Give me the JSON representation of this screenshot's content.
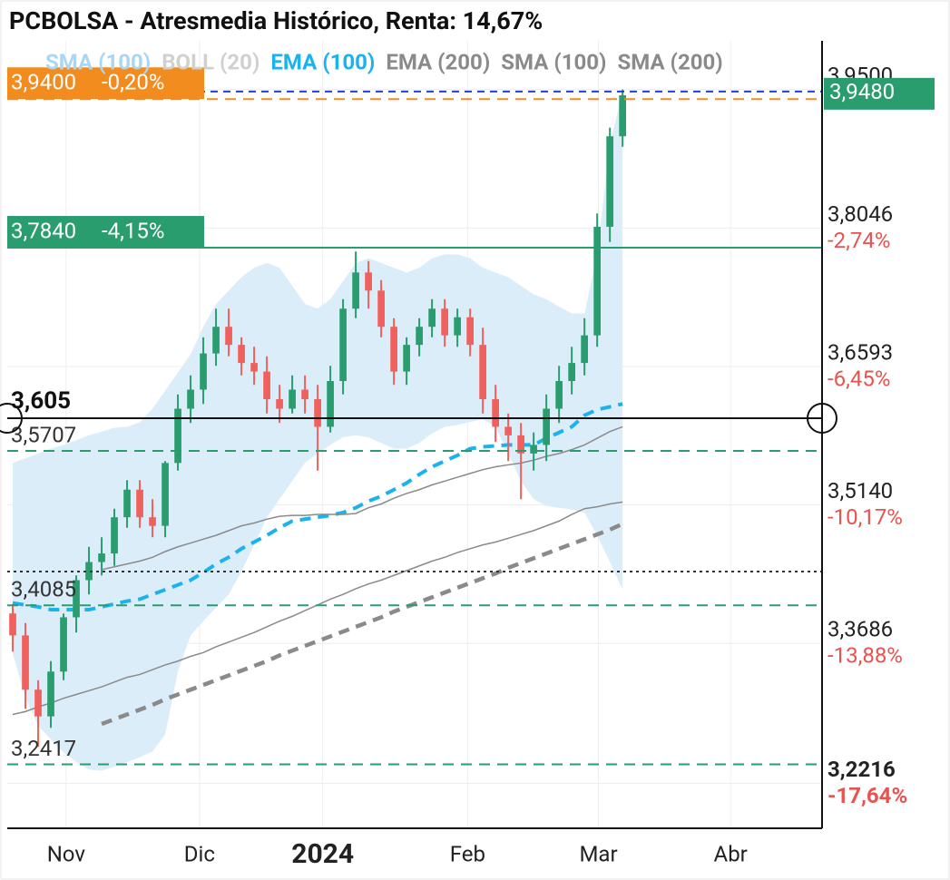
{
  "chart_data": {
    "type": "candlestick",
    "title": "PCBOLSA - Atresmedia Histórico, Renta: 14,67%",
    "legend": [
      {
        "name": "SMA (100)",
        "color": "#a9d6f2"
      },
      {
        "name": "BOLL (20)",
        "color": "#d0d0d0"
      },
      {
        "name": "EMA (100)",
        "color": "#1ab3ee"
      },
      {
        "name": "EMA (200)",
        "color": "#8a8a8a"
      },
      {
        "name": "SMA (100)",
        "color": "#8a8a8a"
      },
      {
        "name": "SMA (200)",
        "color": "#8a8a8a"
      }
    ],
    "categories": [
      null,
      null,
      null,
      null,
      null,
      null,
      null,
      null,
      null,
      null,
      null,
      null,
      null,
      null,
      null,
      null,
      null,
      null,
      null,
      null,
      null,
      null,
      null,
      null,
      null,
      null,
      null,
      null,
      null,
      null,
      null,
      null,
      null,
      null,
      null,
      null,
      null,
      null,
      null,
      null,
      null,
      null,
      null,
      null,
      null,
      null,
      null,
      null,
      null
    ],
    "xlim": [
      -0.43,
      63.7
    ],
    "xticks": [
      {
        "value": 4.2,
        "label": "Nov"
      },
      {
        "value": 14.7,
        "label": "Dic"
      },
      {
        "value": 24.4,
        "label": "2024",
        "bold": true
      },
      {
        "value": 35.8,
        "label": "Feb"
      },
      {
        "value": 46.1,
        "label": "Mar"
      },
      {
        "value": 56.5,
        "label": "Abr"
      }
    ],
    "ylim": [
      3.1745,
      4.0012
    ],
    "yticks": [
      {
        "value": 3.95,
        "label": "3,9500"
      },
      {
        "value": 3.8046,
        "label": "3,8046",
        "change": "-2,74%"
      },
      {
        "value": 3.6593,
        "label": "3,6593",
        "change": "-6,45%"
      },
      {
        "value": 3.514,
        "label": "3,5140",
        "change": "-10,17%"
      },
      {
        "value": 3.3686,
        "label": "3,3686",
        "change": "-13,88%"
      },
      {
        "value": 3.2216,
        "label": "3,2216",
        "change": "-17,64%",
        "bold": true
      }
    ],
    "grid": true,
    "candles": {
      "up_color": "#2a9d6f",
      "down_color": "#f0605d",
      "open": [
        3.4,
        3.377,
        3.32,
        3.292,
        3.339,
        3.396,
        3.435,
        3.454,
        3.463,
        3.501,
        3.53,
        3.501,
        3.492,
        3.558,
        3.615,
        3.635,
        3.673,
        3.701,
        3.682,
        3.663,
        3.654,
        3.625,
        3.615,
        3.635,
        3.625,
        3.596,
        3.644,
        3.72,
        3.758,
        3.739,
        3.701,
        3.654,
        3.682,
        3.701,
        3.72,
        3.692,
        3.711,
        3.682,
        3.625,
        3.596,
        3.587,
        3.568,
        3.577,
        3.615,
        3.644,
        3.663,
        3.692,
        3.806,
        3.901
      ],
      "high": [
        3.41,
        3.39,
        3.33,
        3.35,
        3.4,
        3.44,
        3.47,
        3.48,
        3.51,
        3.54,
        3.54,
        3.52,
        3.56,
        3.63,
        3.65,
        3.69,
        3.72,
        3.72,
        3.69,
        3.68,
        3.67,
        3.64,
        3.65,
        3.65,
        3.64,
        3.66,
        3.73,
        3.78,
        3.77,
        3.75,
        3.71,
        3.69,
        3.71,
        3.73,
        3.73,
        3.72,
        3.72,
        3.7,
        3.64,
        3.61,
        3.6,
        3.59,
        3.63,
        3.66,
        3.68,
        3.71,
        3.82,
        3.91,
        3.95
      ],
      "low": [
        3.36,
        3.3,
        3.26,
        3.28,
        3.33,
        3.38,
        3.42,
        3.44,
        3.45,
        3.49,
        3.49,
        3.48,
        3.48,
        3.55,
        3.6,
        3.62,
        3.66,
        3.67,
        3.65,
        3.64,
        3.61,
        3.6,
        3.61,
        3.61,
        3.55,
        3.59,
        3.63,
        3.71,
        3.72,
        3.69,
        3.64,
        3.64,
        3.67,
        3.69,
        3.68,
        3.68,
        3.67,
        3.61,
        3.58,
        3.56,
        3.52,
        3.55,
        3.56,
        3.6,
        3.63,
        3.65,
        3.68,
        3.79,
        3.89
      ],
      "close": [
        3.377,
        3.32,
        3.292,
        3.339,
        3.396,
        3.435,
        3.454,
        3.463,
        3.501,
        3.53,
        3.501,
        3.492,
        3.558,
        3.615,
        3.635,
        3.673,
        3.701,
        3.682,
        3.663,
        3.654,
        3.625,
        3.615,
        3.635,
        3.625,
        3.596,
        3.644,
        3.72,
        3.758,
        3.739,
        3.701,
        3.654,
        3.682,
        3.701,
        3.72,
        3.692,
        3.711,
        3.682,
        3.625,
        3.596,
        3.587,
        3.568,
        3.577,
        3.615,
        3.644,
        3.663,
        3.692,
        3.806,
        3.901,
        3.944
      ]
    },
    "band": {
      "color": "#dcedfa",
      "upper": [
        3.558,
        3.563,
        3.568,
        3.573,
        3.577,
        3.582,
        3.587,
        3.591,
        3.595,
        3.596,
        3.601,
        3.615,
        3.634,
        3.653,
        3.672,
        3.701,
        3.725,
        3.739,
        3.753,
        3.763,
        3.768,
        3.763,
        3.744,
        3.725,
        3.72,
        3.73,
        3.749,
        3.768,
        3.773,
        3.768,
        3.763,
        3.758,
        3.763,
        3.773,
        3.777,
        3.777,
        3.773,
        3.763,
        3.758,
        3.753,
        3.744,
        3.735,
        3.73,
        3.722,
        3.715,
        3.715,
        3.777,
        3.892,
        3.949
      ],
      "lower": [
        3.358,
        3.311,
        3.282,
        3.268,
        3.254,
        3.244,
        3.236,
        3.235,
        3.239,
        3.244,
        3.249,
        3.255,
        3.273,
        3.339,
        3.377,
        3.392,
        3.406,
        3.42,
        3.444,
        3.472,
        3.501,
        3.52,
        3.539,
        3.558,
        3.568,
        3.577,
        3.585,
        3.587,
        3.585,
        3.579,
        3.573,
        3.573,
        3.579,
        3.589,
        3.596,
        3.598,
        3.601,
        3.604,
        3.596,
        3.568,
        3.539,
        3.52,
        3.513,
        3.511,
        3.509,
        3.506,
        3.482,
        3.454,
        3.425
      ]
    },
    "lines": [
      {
        "color": "#1ab3ee",
        "style": "dashed",
        "width": 4,
        "values": [
          3.411,
          3.409,
          3.407,
          3.404,
          3.404,
          3.404,
          3.404,
          3.407,
          3.41,
          3.413,
          3.415,
          3.42,
          3.425,
          3.43,
          3.435,
          3.443,
          3.452,
          3.459,
          3.468,
          3.475,
          3.482,
          3.49,
          3.497,
          3.499,
          3.501,
          3.503,
          3.506,
          3.511,
          3.518,
          3.523,
          3.53,
          3.537,
          3.546,
          3.554,
          3.56,
          3.566,
          3.573,
          3.575,
          3.576,
          3.577,
          3.577,
          3.577,
          3.584,
          3.59,
          3.596,
          3.608,
          3.614,
          3.617,
          3.62
        ]
      },
      {
        "color": "#8a8a8a",
        "style": "solid",
        "width": 1.5,
        "values": [
          3.294,
          3.297,
          3.302,
          3.306,
          3.311,
          3.315,
          3.319,
          3.323,
          3.328,
          3.333,
          3.336,
          3.341,
          3.346,
          3.35,
          3.355,
          3.359,
          3.365,
          3.37,
          3.375,
          3.38,
          3.386,
          3.392,
          3.397,
          3.403,
          3.409,
          3.415,
          3.42,
          3.426,
          3.431,
          3.435,
          3.44,
          3.445,
          3.45,
          3.455,
          3.459,
          3.464,
          3.468,
          3.472,
          3.475,
          3.479,
          3.483,
          3.487,
          3.492,
          3.497,
          3.504,
          3.51,
          3.512,
          3.515,
          3.517
        ]
      },
      {
        "color": "#8a8a8a",
        "style": "solid",
        "width": 1.5,
        "values": [
          null,
          null,
          null,
          null,
          null,
          null,
          null,
          3.446,
          3.449,
          3.452,
          3.455,
          3.459,
          3.465,
          3.47,
          3.474,
          3.478,
          3.482,
          3.487,
          3.492,
          3.495,
          3.499,
          3.502,
          3.503,
          3.503,
          3.504,
          3.504,
          3.504,
          3.505,
          3.511,
          3.515,
          3.521,
          3.526,
          3.53,
          3.535,
          3.539,
          3.543,
          3.547,
          3.551,
          3.554,
          3.556,
          3.558,
          3.561,
          3.565,
          3.568,
          3.572,
          3.577,
          3.584,
          3.591,
          3.596
        ]
      },
      {
        "color": "#8a8a8a",
        "style": "dashed",
        "width": 4.5,
        "values": [
          null,
          null,
          null,
          null,
          null,
          null,
          null,
          3.284,
          3.289,
          3.294,
          3.299,
          3.304,
          3.31,
          3.315,
          3.32,
          3.325,
          3.33,
          3.335,
          3.34,
          3.345,
          3.35,
          3.356,
          3.361,
          3.366,
          3.371,
          3.376,
          3.381,
          3.386,
          3.391,
          3.396,
          3.402,
          3.407,
          3.412,
          3.417,
          3.422,
          3.427,
          3.432,
          3.437,
          3.442,
          3.448,
          3.453,
          3.458,
          3.463,
          3.468,
          3.473,
          3.478,
          3.483,
          3.488,
          3.494
        ]
      }
    ],
    "levels": [
      {
        "value": 3.94,
        "label": "3,9400",
        "change": "-0,20%",
        "color": "#f28c1f",
        "style": "dashed",
        "box": true
      },
      {
        "value": 3.784,
        "label": "3,7840",
        "change": "-4,15%",
        "color": "#2a9d6f",
        "style": "solid",
        "box": true
      },
      {
        "value": 3.5707,
        "label": "3,5707",
        "color": "#2a9d6f",
        "style": "dashed"
      },
      {
        "value": 3.444,
        "color": "#333333",
        "style": "dotted"
      },
      {
        "value": 3.4085,
        "label": "3,4085",
        "color": "#2a9d6f",
        "style": "dashed"
      },
      {
        "value": 3.2417,
        "label": "3,2417",
        "color": "#2a9d6f",
        "style": "dashed"
      }
    ],
    "last_price": {
      "value": 3.948,
      "label": "3,9480",
      "color": "#2a9d6f",
      "line_color": "#1f3fd6"
    },
    "crosshair": {
      "value": 3.605,
      "label": "3,605"
    }
  }
}
